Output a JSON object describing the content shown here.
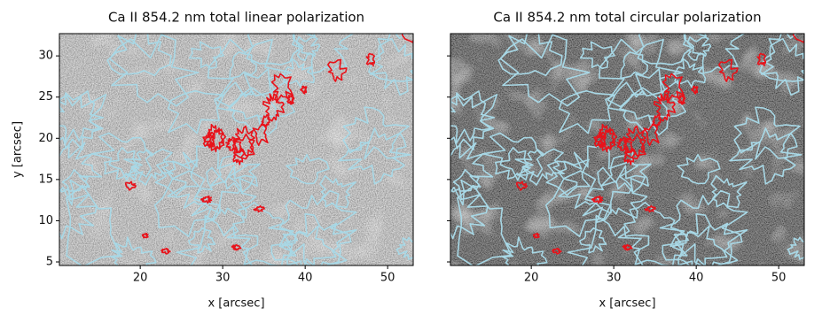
{
  "chart_data": [
    {
      "type": "image",
      "title": "Ca II 854.2 nm total linear polarization",
      "xlabel": "x [arcsec]",
      "ylabel": "y [arcsec]",
      "xlim": [
        10.2,
        53.1
      ],
      "ylim": [
        4.57,
        32.7
      ],
      "xticks": [
        20,
        30,
        40,
        50
      ],
      "yticks": [
        5,
        10,
        15,
        20,
        25,
        30
      ]
    },
    {
      "type": "image",
      "title": "Ca II 854.2 nm total circular polarization",
      "xlabel": "x [arcsec]",
      "xlim": [
        10.2,
        53.1
      ],
      "ylim": [
        4.57,
        32.7
      ],
      "xticks": [
        20,
        30,
        40,
        50
      ],
      "yticks": [
        5,
        10,
        15,
        20,
        25,
        30
      ]
    }
  ]
}
